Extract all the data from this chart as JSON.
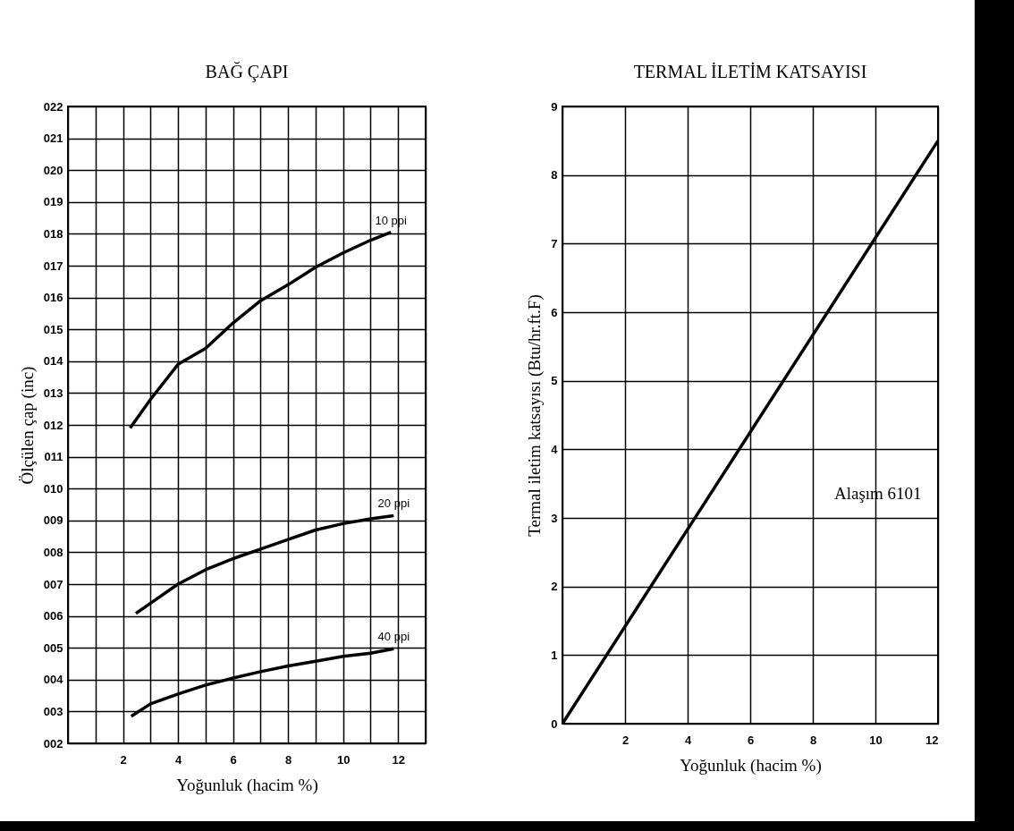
{
  "chart_data": [
    {
      "type": "line",
      "title": "BAĞ ÇAPI",
      "xlabel": "Yoğunluk (hacim %)",
      "ylabel": "Ölçülen çap (inc)",
      "xlim": [
        0,
        13
      ],
      "ylim": [
        2,
        22
      ],
      "xticks": [
        {
          "value": 0,
          "label": null
        },
        {
          "value": 1,
          "label": null
        },
        2,
        {
          "value": 3,
          "label": null
        },
        4,
        {
          "value": 5,
          "label": null
        },
        6,
        {
          "value": 7,
          "label": null
        },
        8,
        {
          "value": 9,
          "label": null
        },
        10,
        {
          "value": 11,
          "label": null
        },
        12,
        {
          "value": 13,
          "label": null
        }
      ],
      "yticks": [
        {
          "value": 2,
          "label": "002"
        },
        {
          "value": 3,
          "label": "003"
        },
        {
          "value": 4,
          "label": "004"
        },
        {
          "value": 5,
          "label": "005"
        },
        {
          "value": 6,
          "label": "006"
        },
        {
          "value": 7,
          "label": "007"
        },
        {
          "value": 8,
          "label": "008"
        },
        {
          "value": 9,
          "label": "009"
        },
        {
          "value": 10,
          "label": "010"
        },
        {
          "value": 11,
          "label": "011"
        },
        {
          "value": 12,
          "label": "012"
        },
        {
          "value": 13,
          "label": "013"
        },
        {
          "value": 14,
          "label": "014"
        },
        {
          "value": 15,
          "label": "015"
        },
        {
          "value": 16,
          "label": "016"
        },
        {
          "value": 17,
          "label": "017"
        },
        {
          "value": 18,
          "label": "018"
        },
        {
          "value": 19,
          "label": "019"
        },
        {
          "value": 20,
          "label": "020"
        },
        {
          "value": 21,
          "label": "021"
        },
        {
          "value": 22,
          "label": "022"
        }
      ],
      "grid": true,
      "series": [
        {
          "name": "10 ppi",
          "color": "#000000",
          "x": [
            2.26,
            3,
            4,
            5,
            6,
            7,
            8,
            9,
            10,
            11,
            11.74
          ],
          "values": [
            11.9,
            12.8,
            13.9,
            14.4,
            15.2,
            15.9,
            16.4,
            16.95,
            17.4,
            17.8,
            18.05
          ]
        },
        {
          "name": "20 ppi",
          "color": "#000000",
          "x": [
            2.47,
            3,
            4,
            5,
            6,
            7,
            8,
            9,
            10,
            11,
            11.84
          ],
          "values": [
            6.08,
            6.4,
            7.0,
            7.45,
            7.8,
            8.1,
            8.4,
            8.7,
            8.9,
            9.05,
            9.15
          ]
        },
        {
          "name": "40 ppi",
          "color": "#000000",
          "x": [
            2.3,
            3,
            4,
            5,
            6,
            7,
            8,
            9,
            10,
            11,
            11.84
          ],
          "values": [
            2.85,
            3.24,
            3.55,
            3.83,
            4.05,
            4.25,
            4.43,
            4.58,
            4.73,
            4.83,
            4.97
          ]
        }
      ]
    },
    {
      "type": "line",
      "title": "TERMAL İLETİM KATSAYISI",
      "xlabel": "Yoğunluk (hacim %)",
      "ylabel": "Termal iletim katsayısı (Btu/hr.ft.F)",
      "xlim": [
        0,
        12
      ],
      "ylim": [
        0,
        9
      ],
      "xticks": [
        {
          "value": 0,
          "label": null
        },
        2,
        4,
        6,
        8,
        10,
        12
      ],
      "yticks": [
        0,
        1,
        2,
        3,
        4,
        5,
        6,
        7,
        8,
        9
      ],
      "grid": true,
      "annotations": [
        "Alaşım 6101"
      ],
      "series": [
        {
          "color": "#000000",
          "x": [
            0,
            12
          ],
          "values": [
            0,
            8.5
          ]
        }
      ]
    }
  ]
}
